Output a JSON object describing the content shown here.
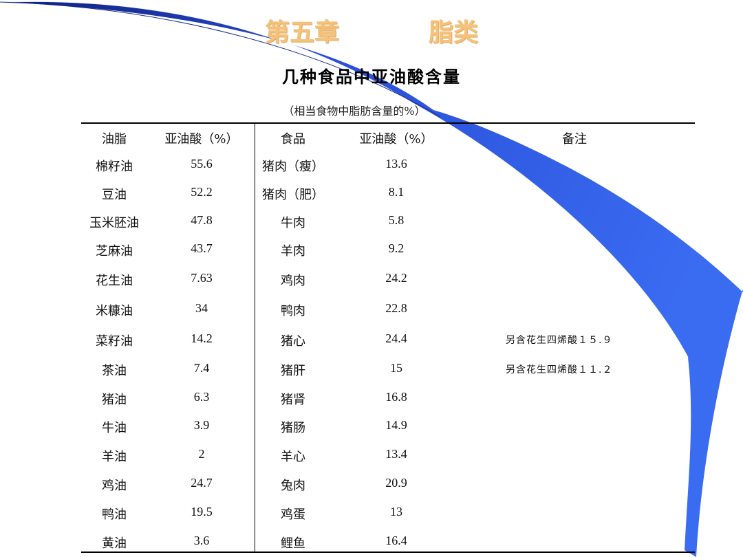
{
  "chapter": {
    "left": "第五章",
    "right": "脂类"
  },
  "title": "几种食品中亚油酸含量",
  "subtitle": "（相当食物中脂肪含量的%）",
  "table": {
    "headers": [
      "油脂",
      "亚油酸（%）",
      "食品",
      "亚油酸（%）",
      "备注"
    ],
    "rows": [
      [
        "棉籽油",
        "55.6",
        "猪肉（瘦）",
        "13.6",
        ""
      ],
      [
        "豆油",
        "52.2",
        "猪肉（肥）",
        "8.1",
        ""
      ],
      [
        "玉米胚油",
        "47.8",
        "牛肉",
        "5.8",
        ""
      ],
      [
        "芝麻油",
        "43.7",
        "羊肉",
        "9.2",
        ""
      ],
      [
        "花生油",
        "7.63",
        "鸡肉",
        "24.2",
        ""
      ],
      [
        "米糠油",
        "34",
        "鸭肉",
        "22.8",
        ""
      ],
      [
        "菜籽油",
        "14.2",
        "猪心",
        "24.4",
        "另含花生四烯酸１５.９"
      ],
      [
        "茶油",
        "7.4",
        "猪肝",
        "15",
        "另含花生四烯酸１１.２"
      ],
      [
        "猪油",
        "6.3",
        "猪肾",
        "16.8",
        ""
      ],
      [
        "牛油",
        "3.9",
        "猪肠",
        "14.9",
        ""
      ],
      [
        "羊油",
        "2",
        "羊心",
        "13.4",
        ""
      ],
      [
        "鸡油",
        "24.7",
        "兔肉",
        "20.9",
        ""
      ],
      [
        "鸭油",
        "19.5",
        "鸡蛋",
        "13",
        ""
      ],
      [
        "黄油",
        "3.6",
        "鲤鱼",
        "16.4",
        ""
      ]
    ]
  },
  "colors": {
    "accent_blue": "#2f5fe8",
    "dark_blue": "#1a2e8c",
    "chapter_orange": "#f6c27a"
  }
}
